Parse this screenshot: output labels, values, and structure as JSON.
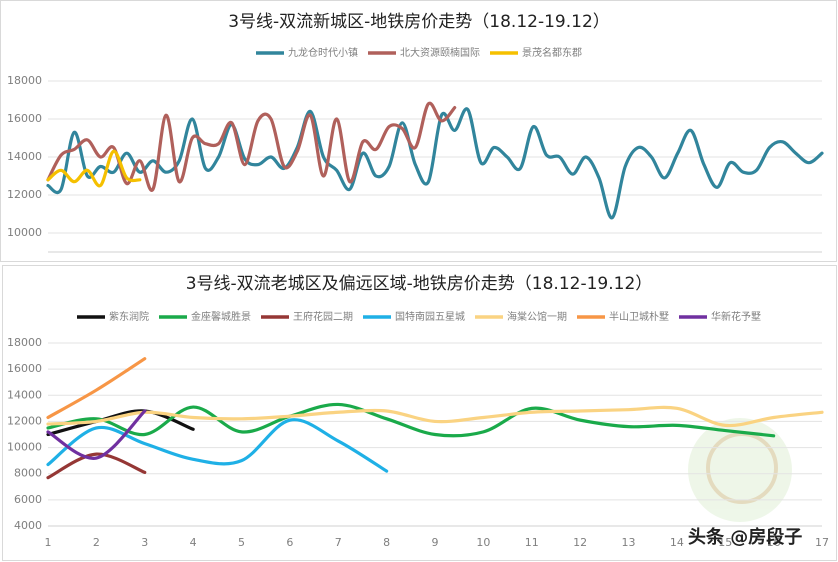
{
  "chart_data": [
    {
      "type": "line",
      "title": "3号线-双流新城区-地铁房价走势（18.12-19.12）",
      "categories": [
        null,
        null,
        null,
        null,
        null,
        null,
        null,
        null,
        null,
        null,
        null,
        null,
        null,
        null,
        null,
        null,
        null,
        null,
        null,
        null,
        null,
        null,
        null,
        null,
        null,
        null,
        null,
        null,
        null,
        null,
        null,
        null,
        null,
        null,
        null,
        null,
        null,
        null,
        null,
        null,
        null,
        null,
        null,
        null,
        null,
        null,
        null,
        null,
        null,
        null,
        null,
        null,
        null,
        null,
        null,
        null,
        null,
        null,
        null,
        null
      ],
      "series": [
        {
          "name": "九龙仓时代小镇",
          "color": "#31859c",
          "values": [
            12500,
            12300,
            15300,
            13000,
            13500,
            13200,
            14200,
            13200,
            13800,
            13200,
            13800,
            16000,
            13400,
            14000,
            15700,
            13900,
            13600,
            14000,
            13400,
            14500,
            16400,
            14000,
            13300,
            12300,
            14200,
            13000,
            13500,
            15800,
            13600,
            12700,
            16200,
            15400,
            16500,
            13700,
            14500,
            14000,
            13400,
            15600,
            14100,
            14000,
            13100,
            14000,
            12900,
            10800,
            13500,
            14500,
            14000,
            12900,
            14200,
            15400,
            13600,
            12400,
            13700,
            13200,
            13300,
            14500,
            14800,
            14200,
            13700,
            14200
          ]
        },
        {
          "name": "北大资源颐楠国际",
          "color": "#b0605b",
          "values": [
            12800,
            14100,
            14400,
            14900,
            14000,
            14500,
            12600,
            13800,
            12300,
            16200,
            12700,
            15000,
            14700,
            14700,
            15800,
            13600,
            15900,
            16000,
            13500,
            14300,
            16200,
            13000,
            16000,
            12700,
            14800,
            14400,
            15600,
            15500,
            14500,
            16800,
            15900,
            16600,
            null,
            null,
            null,
            null,
            null,
            null,
            null,
            null,
            null,
            null,
            null,
            null,
            null,
            null,
            null,
            null,
            null,
            null,
            null,
            null,
            null,
            null,
            null,
            null,
            null,
            null,
            null,
            null
          ]
        },
        {
          "name": "景茂名都东郡",
          "color": "#f5c000",
          "values": [
            12800,
            13300,
            12700,
            13300,
            12500,
            14300,
            12900,
            12800,
            null,
            null,
            null,
            null,
            null,
            null,
            null,
            null,
            null,
            null,
            null,
            null,
            null,
            null,
            null,
            null,
            null,
            null,
            null,
            null,
            null,
            null,
            null,
            null,
            null,
            null,
            null,
            null,
            null,
            null,
            null,
            null,
            null,
            null,
            null,
            null,
            null,
            null,
            null,
            null,
            null,
            null,
            null,
            null,
            null,
            null,
            null,
            null,
            null,
            null,
            null,
            null
          ]
        }
      ],
      "ylim": [
        9000,
        18000
      ],
      "yticks": [
        10000,
        12000,
        14000,
        16000,
        18000
      ],
      "grid": true
    },
    {
      "type": "line",
      "title": "3号线-双流老城区及偏远区域-地铁房价走势（18.12-19.12）",
      "categories": [
        1,
        2,
        3,
        4,
        5,
        6,
        7,
        8,
        9,
        10,
        11,
        12,
        13,
        14,
        15,
        16,
        17
      ],
      "series": [
        {
          "name": "紫东润院",
          "color": "#111111",
          "values": [
            11000,
            12000,
            12800,
            11400,
            null,
            null,
            null,
            null,
            null,
            null,
            null,
            null,
            null,
            null,
            null,
            null,
            null
          ]
        },
        {
          "name": "金座馨城胜景",
          "color": "#1aaa4a",
          "values": [
            11500,
            12200,
            11000,
            13100,
            11200,
            12400,
            13300,
            12200,
            11000,
            11200,
            13000,
            12100,
            11600,
            11700,
            11300,
            10900,
            null
          ]
        },
        {
          "name": "王府花园二期",
          "color": "#953735",
          "values": [
            7700,
            9500,
            8100,
            null,
            null,
            null,
            null,
            null,
            null,
            null,
            null,
            null,
            null,
            null,
            null,
            null,
            null
          ]
        },
        {
          "name": "国特南园五星城",
          "color": "#1fb0e6",
          "values": [
            8700,
            11500,
            10300,
            9100,
            9000,
            12100,
            10500,
            8200,
            null,
            null,
            null,
            null,
            null,
            null,
            null,
            null,
            null
          ]
        },
        {
          "name": "海棠公馆一期",
          "color": "#fad382",
          "values": [
            11800,
            12000,
            12700,
            12300,
            12200,
            12400,
            12700,
            12800,
            12000,
            12300,
            12700,
            12800,
            12900,
            13000,
            11700,
            12300,
            12700
          ]
        },
        {
          "name": "半山卫城朴墅",
          "color": "#f79646",
          "values": [
            12300,
            14400,
            16800,
            null,
            null,
            null,
            null,
            null,
            null,
            null,
            null,
            null,
            null,
            null,
            null,
            null,
            null
          ]
        },
        {
          "name": "华新花予墅",
          "color": "#7030a0",
          "values": [
            11200,
            9200,
            12800,
            null,
            null,
            null,
            null,
            null,
            null,
            null,
            null,
            null,
            null,
            null,
            null,
            null,
            null
          ]
        }
      ],
      "ylim": [
        4000,
        18000
      ],
      "yticks": [
        4000,
        6000,
        8000,
        10000,
        12000,
        14000,
        16000,
        18000
      ],
      "grid": true
    }
  ],
  "watermark": "头条 @房段子"
}
